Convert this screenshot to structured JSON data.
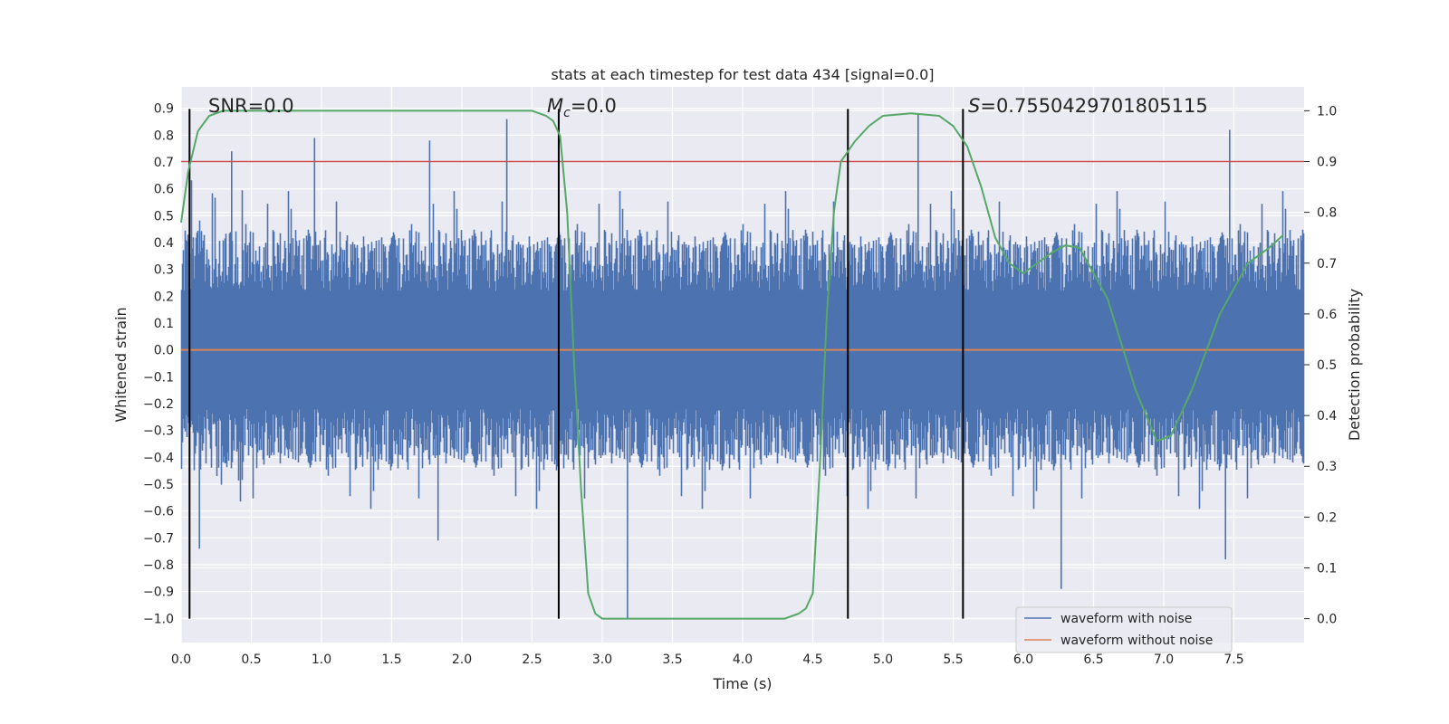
{
  "chart_data": {
    "type": "line",
    "title": "stats at each timestep for test data 434 [signal=0.0]",
    "xlabel": "Time (s)",
    "ylabel": "Whitened strain",
    "y2label": "Detection probability",
    "xlim": [
      0.0,
      8.0
    ],
    "ylim": [
      -1.09,
      0.98
    ],
    "y2lim": [
      -0.047,
      1.047
    ],
    "x_ticks": [
      "0.0",
      "0.5",
      "1.0",
      "1.5",
      "2.0",
      "2.5",
      "3.0",
      "3.5",
      "4.0",
      "4.5",
      "5.0",
      "5.5",
      "6.0",
      "6.5",
      "7.0",
      "7.5"
    ],
    "y_ticks": [
      "0.9",
      "0.8",
      "0.7",
      "0.6",
      "0.5",
      "0.4",
      "0.3",
      "0.2",
      "0.1",
      "0.0",
      "−0.1",
      "−0.2",
      "−0.3",
      "−0.4",
      "−0.5",
      "−0.6",
      "−0.7",
      "−0.8",
      "−0.9",
      "−1.0"
    ],
    "y2_ticks": [
      "1.0",
      "0.9",
      "0.8",
      "0.7",
      "0.6",
      "0.5",
      "0.4",
      "0.3",
      "0.2",
      "0.1",
      "0.0"
    ],
    "grid": true,
    "legend_position": "lower-right",
    "annotations": {
      "snr": "SNR=0.0",
      "mc_symbol": "M",
      "mc_sub": "c",
      "mc_value": "=0.0",
      "s_symbol": "S",
      "s_value": "=0.7550429701805115"
    },
    "vertical_lines_x": [
      0.06,
      2.69,
      4.75,
      5.57
    ],
    "threshold_y2": 0.9,
    "series": [
      {
        "name": "waveform with noise",
        "color": "#4c72b0",
        "amplitude_envelope": 0.45,
        "visible_peaks": [
          {
            "x": 0.36,
            "y": 0.74
          },
          {
            "x": 0.95,
            "y": 0.79
          },
          {
            "x": 1.77,
            "y": 0.78
          },
          {
            "x": 2.32,
            "y": 0.86
          },
          {
            "x": 5.25,
            "y": 0.88
          },
          {
            "x": 7.47,
            "y": 0.82
          },
          {
            "x": 3.18,
            "y": -1.0
          },
          {
            "x": 6.27,
            "y": -0.89
          },
          {
            "x": 7.44,
            "y": -0.78
          },
          {
            "x": 0.13,
            "y": -0.74
          },
          {
            "x": 1.83,
            "y": -0.71
          }
        ]
      },
      {
        "name": "waveform without noise",
        "color": "#dd8452",
        "constant_value": 0.0
      },
      {
        "name": "detection probability",
        "color": "#55a868",
        "axis": "right",
        "x": [
          0.0,
          0.05,
          0.12,
          0.2,
          0.3,
          0.4,
          0.6,
          1.0,
          2.0,
          2.5,
          2.6,
          2.65,
          2.7,
          2.75,
          2.8,
          2.85,
          2.9,
          2.95,
          3.0,
          3.2,
          4.0,
          4.3,
          4.4,
          4.45,
          4.5,
          4.55,
          4.6,
          4.65,
          4.7,
          4.8,
          4.9,
          5.0,
          5.2,
          5.4,
          5.5,
          5.6,
          5.7,
          5.8,
          5.9,
          6.0,
          6.1,
          6.2,
          6.3,
          6.4,
          6.6,
          6.8,
          6.95,
          7.05,
          7.2,
          7.4,
          7.6,
          7.75,
          7.85
        ],
        "y": [
          0.78,
          0.88,
          0.96,
          0.99,
          1.0,
          1.0,
          1.0,
          1.0,
          1.0,
          1.0,
          0.99,
          0.98,
          0.95,
          0.8,
          0.5,
          0.25,
          0.05,
          0.01,
          0.0,
          0.0,
          0.0,
          0.0,
          0.01,
          0.02,
          0.05,
          0.3,
          0.6,
          0.8,
          0.9,
          0.94,
          0.97,
          0.99,
          0.995,
          0.99,
          0.97,
          0.93,
          0.85,
          0.75,
          0.7,
          0.68,
          0.7,
          0.72,
          0.735,
          0.73,
          0.63,
          0.45,
          0.35,
          0.36,
          0.45,
          0.6,
          0.7,
          0.73,
          0.755
        ]
      }
    ]
  }
}
